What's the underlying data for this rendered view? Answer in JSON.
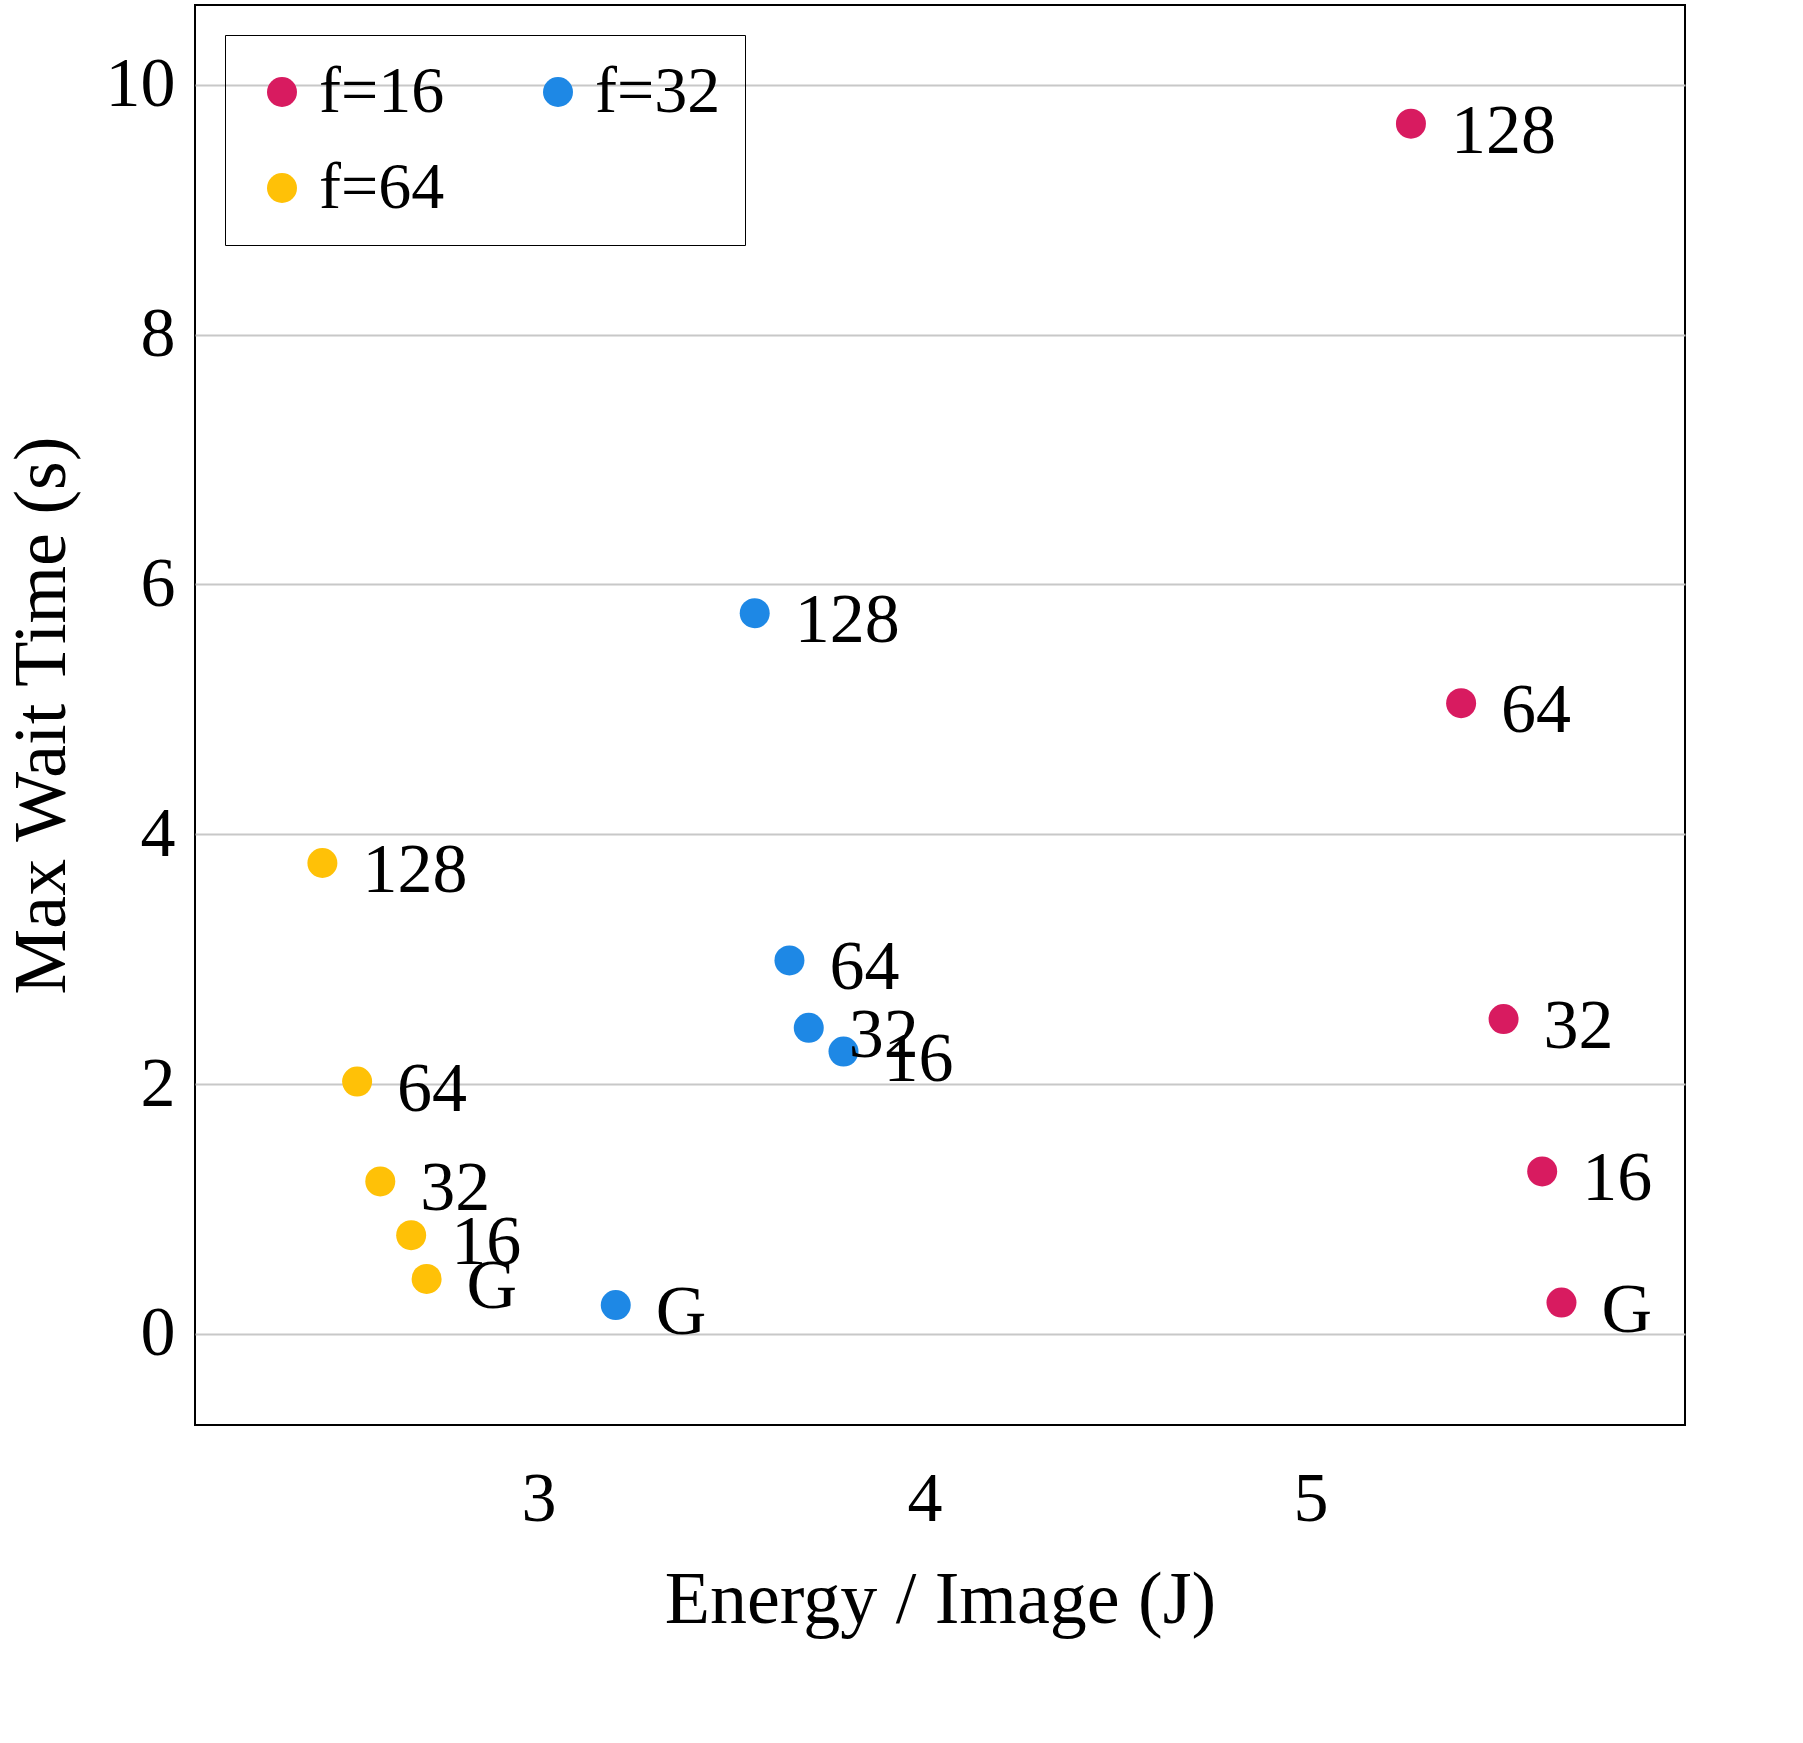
{
  "chart_data": {
    "type": "scatter",
    "xlabel": "Energy / Image (J)",
    "ylabel": "Max Wait Time (s)",
    "xlim": [
      2.11,
      5.97
    ],
    "ylim": [
      -0.73,
      10.64
    ],
    "xticks": [
      3,
      4,
      5
    ],
    "yticks": [
      0,
      2,
      4,
      6,
      8,
      10
    ],
    "grid": "y",
    "legend": "top left",
    "marker": "circle",
    "series": [
      {
        "name": "f=16",
        "color": "#d81b60",
        "x": [
          5.26,
          5.39,
          5.5,
          5.6,
          5.65
        ],
        "values": [
          9.69,
          5.05,
          2.52,
          1.3,
          0.25
        ]
      },
      {
        "name": "f=32",
        "color": "#1e88e5",
        "x": [
          3.56,
          3.65,
          3.7,
          3.79,
          3.2
        ],
        "values": [
          5.77,
          2.99,
          2.45,
          2.26,
          0.23
        ]
      },
      {
        "name": "f=64",
        "color": "#ffc107",
        "x": [
          2.44,
          2.53,
          2.59,
          2.67,
          2.71
        ],
        "values": [
          3.77,
          2.02,
          1.22,
          0.79,
          0.44
        ]
      }
    ],
    "annotations": [
      {
        "text": "128",
        "x": 5.26,
        "y": 9.69
      },
      {
        "text": "64",
        "x": 5.39,
        "y": 5.05
      },
      {
        "text": "32",
        "x": 5.5,
        "y": 2.52
      },
      {
        "text": "16",
        "x": 5.6,
        "y": 1.3
      },
      {
        "text": "G",
        "x": 5.65,
        "y": 0.25
      },
      {
        "text": "128",
        "x": 3.56,
        "y": 5.77
      },
      {
        "text": "64",
        "x": 3.65,
        "y": 2.99
      },
      {
        "text": "32",
        "x": 3.7,
        "y": 2.45
      },
      {
        "text": "16",
        "x": 3.79,
        "y": 2.26
      },
      {
        "text": "G",
        "x": 3.2,
        "y": 0.23
      },
      {
        "text": "128",
        "x": 2.44,
        "y": 3.77
      },
      {
        "text": "64",
        "x": 2.53,
        "y": 2.02
      },
      {
        "text": "32",
        "x": 2.59,
        "y": 1.22
      },
      {
        "text": "16",
        "x": 2.67,
        "y": 0.79
      },
      {
        "text": "G",
        "x": 2.71,
        "y": 0.44
      }
    ]
  }
}
